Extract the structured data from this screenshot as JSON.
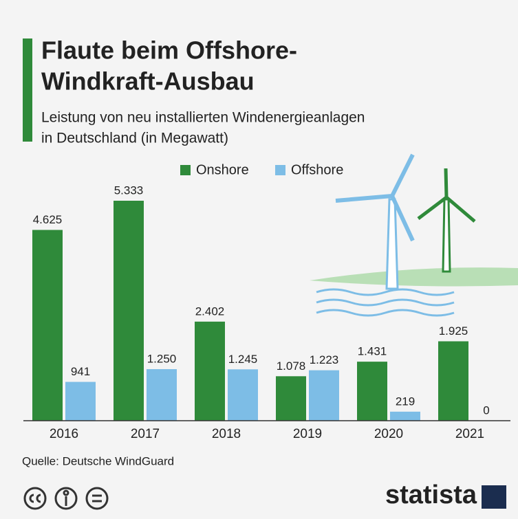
{
  "chart_data": {
    "type": "bar",
    "title": [
      "Flaute beim Offshore-",
      "Windkraft-Ausbau"
    ],
    "subtitle": [
      "Leistung von neu installierten Windenergieanlagen",
      "in Deutschland (in Megawatt)"
    ],
    "categories": [
      "2016",
      "2017",
      "2018",
      "2019",
      "2020",
      "2021"
    ],
    "series": [
      {
        "name": "Onshore",
        "color": "#2f8a3a",
        "values": [
          4625,
          5333,
          2402,
          1078,
          1431,
          1925
        ],
        "value_labels": [
          "4.625",
          "5.333",
          "2.402",
          "1.078",
          "1.431",
          "1.925"
        ]
      },
      {
        "name": "Offshore",
        "color": "#7dbde6",
        "values": [
          941,
          1250,
          1245,
          1223,
          219,
          0
        ],
        "value_labels": [
          "941",
          "1.250",
          "1.245",
          "1.223",
          "219",
          "0"
        ]
      }
    ],
    "legend": "top",
    "source": "Quelle: Deutsche WindGuard"
  },
  "logo": "statista"
}
